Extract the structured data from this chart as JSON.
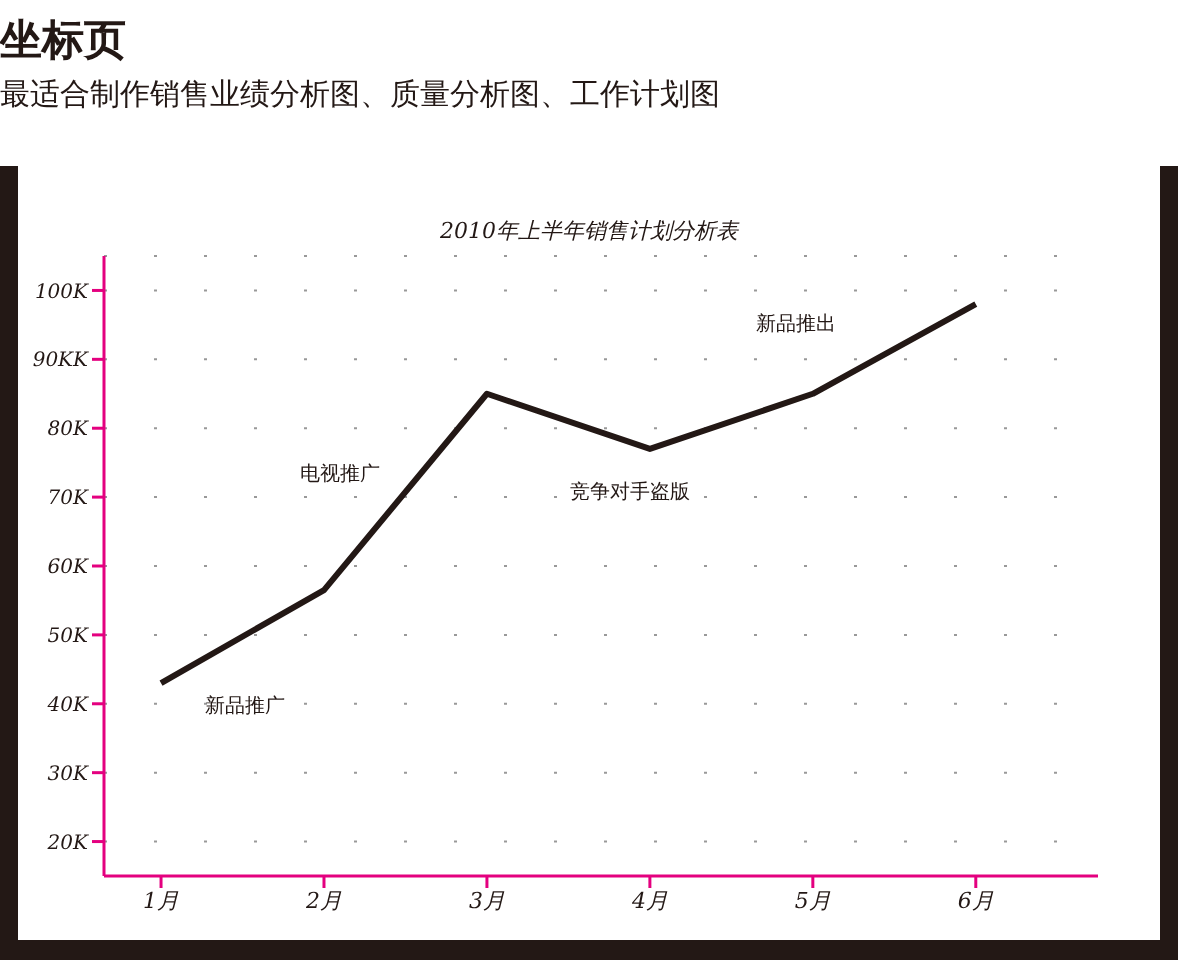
{
  "chart_data": {
    "type": "line",
    "title": "2010年上半年销售计划分析表",
    "categories": [
      "1月",
      "2月",
      "3月",
      "4月",
      "5月",
      "6月"
    ],
    "series": [
      {
        "color": "#231815",
        "values": [
          43,
          56.5,
          85,
          77,
          85,
          98
        ]
      }
    ],
    "ylim": [
      15,
      105
    ],
    "yticks": [
      {
        "value": 20,
        "label": "20K"
      },
      {
        "value": 30,
        "label": "30K"
      },
      {
        "value": 40,
        "label": "40K"
      },
      {
        "value": 50,
        "label": "50K"
      },
      {
        "value": 60,
        "label": "60K"
      },
      {
        "value": 70,
        "label": "70K"
      },
      {
        "value": 80,
        "label": "80K"
      },
      {
        "value": 90,
        "label": "90KK"
      },
      {
        "value": 100,
        "label": "100K"
      }
    ],
    "grid": "y",
    "marker": "none",
    "line_style": "solid",
    "annotations": [
      "坐标页",
      "最适合制作销售业绩分析图、质量分析图、工作计划图",
      {
        "text": "新品推广",
        "x": "1月",
        "y": 43
      },
      "电视推广",
      {
        "text": "竞争对手盗版",
        "x": "4月",
        "y": 77
      },
      "新品推出"
    ]
  }
}
